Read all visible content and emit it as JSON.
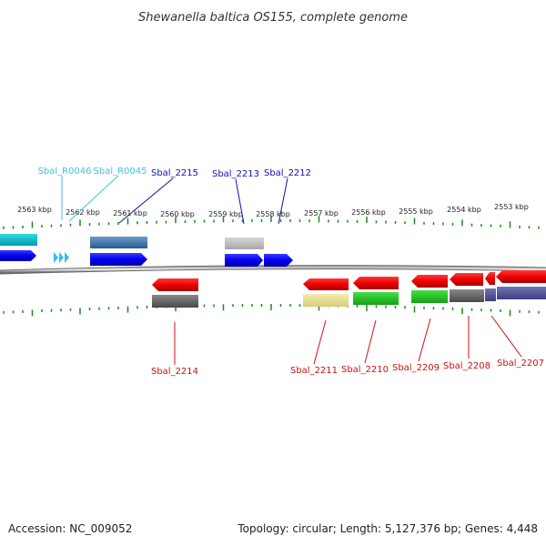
{
  "title": "Shewanella baltica OS155, complete genome",
  "footer": {
    "accession": "Accession: NC_009052",
    "summary": "Topology: circular; Length: 5,127,376 bp; Genes: 4,448"
  },
  "colors": {
    "forward_label": "#1010b0",
    "rna_label": "#40c0e0",
    "reverse_label": "#cc1111",
    "tick": "#1a8a1a",
    "backbone": "#888888"
  },
  "scale": {
    "unit": "kbp",
    "ticks": [
      {
        "label": "2563 kbp"
      },
      {
        "label": "2562 kbp"
      },
      {
        "label": "2561 kbp"
      },
      {
        "label": "2560 kbp"
      },
      {
        "label": "2559 kbp"
      },
      {
        "label": "2558 kbp"
      },
      {
        "label": "2557 kbp"
      },
      {
        "label": "2556 kbp"
      },
      {
        "label": "2555 kbp"
      },
      {
        "label": "2554 kbp"
      },
      {
        "label": "2553 kbp"
      }
    ]
  },
  "labels": {
    "top": [
      {
        "text": "Sbal_R0046",
        "kind": "rna"
      },
      {
        "text": "Sbal_R0045",
        "kind": "rna"
      },
      {
        "text": "Sbal_2215",
        "kind": "forward"
      },
      {
        "text": "Sbal_2213",
        "kind": "forward"
      },
      {
        "text": "Sbal_2212",
        "kind": "forward"
      }
    ],
    "bottom": [
      {
        "text": "Sbal_2214",
        "kind": "reverse"
      },
      {
        "text": "Sbal_2211",
        "kind": "reverse"
      },
      {
        "text": "Sbal_2210",
        "kind": "reverse"
      },
      {
        "text": "Sbal_2209",
        "kind": "reverse"
      },
      {
        "text": "Sbal_2208",
        "kind": "reverse"
      },
      {
        "text": "Sbal_2207",
        "kind": "reverse"
      }
    ]
  }
}
